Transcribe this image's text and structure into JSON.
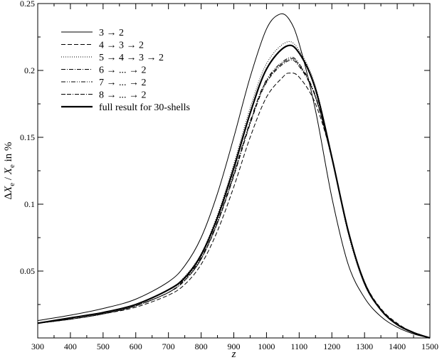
{
  "chart_data": {
    "type": "line",
    "xlabel": "z",
    "ylabel": "ΔX_e / X_e in %",
    "ylabel_parts": {
      "delta": "Δ",
      "x1": "X",
      "sub1": "e",
      "slash": " / ",
      "x2": "X",
      "sub2": "e",
      "suffix": " in %"
    },
    "xlim": [
      300,
      1500
    ],
    "ylim": [
      0,
      0.25
    ],
    "xticks": [
      300,
      400,
      500,
      600,
      700,
      800,
      900,
      1000,
      1100,
      1200,
      1300,
      1400,
      1500
    ],
    "yticks": [
      0.05,
      0.1,
      0.15,
      0.2,
      0.25
    ],
    "ytick_labels": [
      "0.05",
      "0.1",
      "0.15",
      "0.2",
      "0.25"
    ],
    "grid": false,
    "legend_position": "top-left",
    "series": [
      {
        "name": "3 → 2",
        "style": "solid",
        "x": [
          300,
          400,
          500,
          600,
          700,
          750,
          800,
          850,
          900,
          950,
          1000,
          1040,
          1070,
          1100,
          1150,
          1200,
          1250,
          1300,
          1350,
          1400,
          1450,
          1500
        ],
        "y": [
          0.013,
          0.017,
          0.022,
          0.029,
          0.042,
          0.054,
          0.075,
          0.108,
          0.15,
          0.195,
          0.231,
          0.242,
          0.238,
          0.22,
          0.17,
          0.105,
          0.055,
          0.03,
          0.016,
          0.008,
          0.003,
          0.0
        ]
      },
      {
        "name": "4 → 3 → 2",
        "style": "dashed",
        "x": [
          300,
          400,
          500,
          600,
          700,
          750,
          800,
          850,
          900,
          950,
          1000,
          1050,
          1070,
          1100,
          1150,
          1200,
          1250,
          1300,
          1350,
          1400,
          1450,
          1500
        ],
        "y": [
          0.011,
          0.014,
          0.018,
          0.023,
          0.032,
          0.04,
          0.055,
          0.08,
          0.113,
          0.15,
          0.18,
          0.195,
          0.198,
          0.195,
          0.175,
          0.135,
          0.08,
          0.042,
          0.022,
          0.011,
          0.004,
          0.0
        ]
      },
      {
        "name": "5 → 4 → 3 → 2",
        "style": "dotted",
        "x": [
          300,
          400,
          500,
          600,
          700,
          750,
          800,
          850,
          900,
          950,
          1000,
          1060,
          1100,
          1150,
          1200,
          1250,
          1300,
          1350,
          1400,
          1450,
          1500
        ],
        "y": [
          0.011,
          0.015,
          0.019,
          0.025,
          0.036,
          0.046,
          0.063,
          0.092,
          0.13,
          0.172,
          0.205,
          0.221,
          0.215,
          0.188,
          0.135,
          0.078,
          0.04,
          0.021,
          0.01,
          0.004,
          0.0
        ]
      },
      {
        "name": "6 → ... → 2",
        "style": "dashdot",
        "x": [
          300,
          400,
          500,
          600,
          700,
          750,
          800,
          850,
          900,
          950,
          1000,
          1065,
          1100,
          1150,
          1200,
          1250,
          1300,
          1350,
          1400,
          1450,
          1500
        ],
        "y": [
          0.011,
          0.014,
          0.018,
          0.024,
          0.034,
          0.043,
          0.059,
          0.086,
          0.121,
          0.16,
          0.191,
          0.207,
          0.203,
          0.18,
          0.134,
          0.08,
          0.042,
          0.021,
          0.01,
          0.004,
          0.0
        ]
      },
      {
        "name": "7 → ... → 2",
        "style": "dashdotdot",
        "x": [
          300,
          400,
          500,
          600,
          700,
          750,
          800,
          850,
          900,
          950,
          1000,
          1065,
          1100,
          1150,
          1200,
          1250,
          1300,
          1350,
          1400,
          1450,
          1500
        ],
        "y": [
          0.011,
          0.014,
          0.018,
          0.024,
          0.034,
          0.044,
          0.06,
          0.087,
          0.123,
          0.162,
          0.193,
          0.209,
          0.205,
          0.181,
          0.134,
          0.08,
          0.042,
          0.021,
          0.01,
          0.004,
          0.0
        ]
      },
      {
        "name": "8 → ... → 2",
        "style": "dashdashdot",
        "x": [
          300,
          400,
          500,
          600,
          700,
          750,
          800,
          850,
          900,
          950,
          1000,
          1065,
          1100,
          1150,
          1200,
          1250,
          1300,
          1350,
          1400,
          1450,
          1500
        ],
        "y": [
          0.011,
          0.014,
          0.018,
          0.024,
          0.034,
          0.043,
          0.059,
          0.086,
          0.122,
          0.161,
          0.192,
          0.208,
          0.204,
          0.18,
          0.134,
          0.08,
          0.042,
          0.021,
          0.01,
          0.004,
          0.0
        ]
      },
      {
        "name": "full result for 30-shells",
        "style": "thick",
        "x": [
          300,
          400,
          500,
          600,
          700,
          750,
          800,
          850,
          900,
          950,
          1000,
          1060,
          1100,
          1150,
          1200,
          1250,
          1300,
          1350,
          1400,
          1450,
          1500
        ],
        "y": [
          0.011,
          0.015,
          0.019,
          0.025,
          0.036,
          0.045,
          0.062,
          0.09,
          0.127,
          0.168,
          0.201,
          0.218,
          0.213,
          0.186,
          0.135,
          0.08,
          0.041,
          0.021,
          0.01,
          0.004,
          0.0
        ]
      }
    ]
  }
}
